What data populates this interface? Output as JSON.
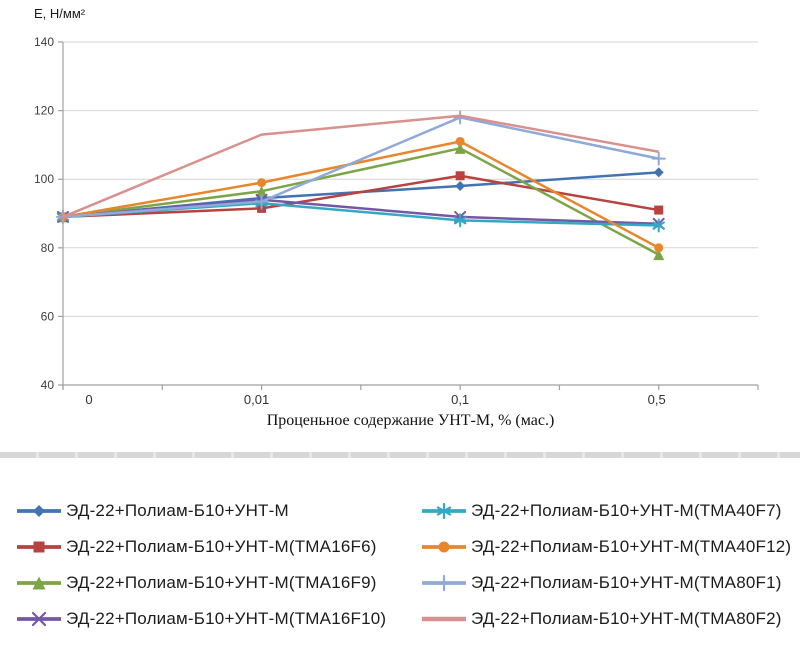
{
  "chart_data": {
    "type": "line",
    "title": "",
    "y_label": "Е, Н/мм²",
    "x_label": "Проценьное содержание УНТ-М, % (мас.)",
    "categories": [
      "0",
      "0,01",
      "0,1",
      "0,5"
    ],
    "y_ticks": [
      40,
      60,
      80,
      100,
      120,
      140
    ],
    "ylim": [
      40,
      140
    ],
    "grid": true,
    "legend_position": "bottom-two-columns",
    "x_slot_index": [
      0,
      2,
      4,
      6
    ],
    "x_slot_count": 7,
    "axis_color": "#a0a0a0",
    "grid_color": "#d4d4d4",
    "tick_label_color": "#404040",
    "series": [
      {
        "name": "ЭД-22+Полиам-Б10+УНТ-М",
        "color": "#4273b3",
        "marker": "diamond",
        "values": [
          89,
          94.5,
          98,
          102
        ]
      },
      {
        "name": "ЭД-22+Полиам-Б10+УНТ-М(ТМА16F6)",
        "color": "#b8423f",
        "marker": "square",
        "values": [
          89,
          91.5,
          101,
          91
        ]
      },
      {
        "name": "ЭД-22+Полиам-Б10+УНТ-М(ТМА16F9)",
        "color": "#7da548",
        "marker": "triangle",
        "values": [
          89,
          96.5,
          109,
          78
        ]
      },
      {
        "name": "ЭД-22+Полиам-Б10+УНТ-М(ТМА16F10)",
        "color": "#7458a8",
        "marker": "x",
        "values": [
          89,
          94,
          89,
          87
        ]
      },
      {
        "name": "ЭД-22+Полиам-Б10+УНТ-М(ТМА40F7)",
        "color": "#35a9c4",
        "marker": "asterisk",
        "values": [
          89,
          93,
          88,
          86.5
        ]
      },
      {
        "name": "ЭД-22+Полиам-Б10+УНТ-М(ТМА40F12)",
        "color": "#e8862d",
        "marker": "circle",
        "values": [
          89,
          99,
          111,
          80
        ]
      },
      {
        "name": "ЭД-22+Полиам-Б10+УНТ-М(ТМА80F1)",
        "color": "#8fa9d8",
        "marker": "plus",
        "values": [
          89,
          93.5,
          118,
          106
        ]
      },
      {
        "name": "ЭД-22+Полиам-Б10+УНТ-М(ТМА80F2)",
        "color": "#d9918e",
        "marker": "none",
        "values": [
          89,
          113,
          118.5,
          108
        ]
      }
    ]
  }
}
